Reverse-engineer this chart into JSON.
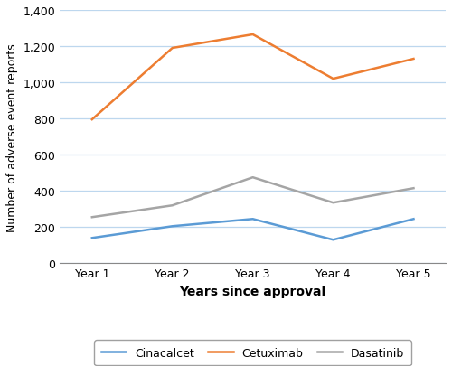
{
  "x_labels": [
    "Year 1",
    "Year 2",
    "Year 3",
    "Year 4",
    "Year 5"
  ],
  "x_values": [
    1,
    2,
    3,
    4,
    5
  ],
  "cinacalcet": [
    140,
    205,
    245,
    130,
    245
  ],
  "cetuximab": [
    795,
    1190,
    1265,
    1020,
    1130
  ],
  "dasatinib": [
    255,
    320,
    475,
    335,
    415
  ],
  "cinacalcet_color": "#5B9BD5",
  "cetuximab_color": "#ED7D31",
  "dasatinib_color": "#A5A5A5",
  "ylabel": "Number of adverse event reports",
  "xlabel": "Years since approval",
  "ylim": [
    0,
    1400
  ],
  "yticks": [
    0,
    200,
    400,
    600,
    800,
    1000,
    1200,
    1400
  ],
  "ytick_labels": [
    "0",
    "200",
    "400",
    "600",
    "800",
    "1,000",
    "1,200",
    "1,400"
  ],
  "legend_labels": [
    "Cinacalcet",
    "Cetuximab",
    "Dasatinib"
  ],
  "background_color": "#ffffff",
  "grid_color": "#BDD7EE",
  "linewidth": 1.8
}
